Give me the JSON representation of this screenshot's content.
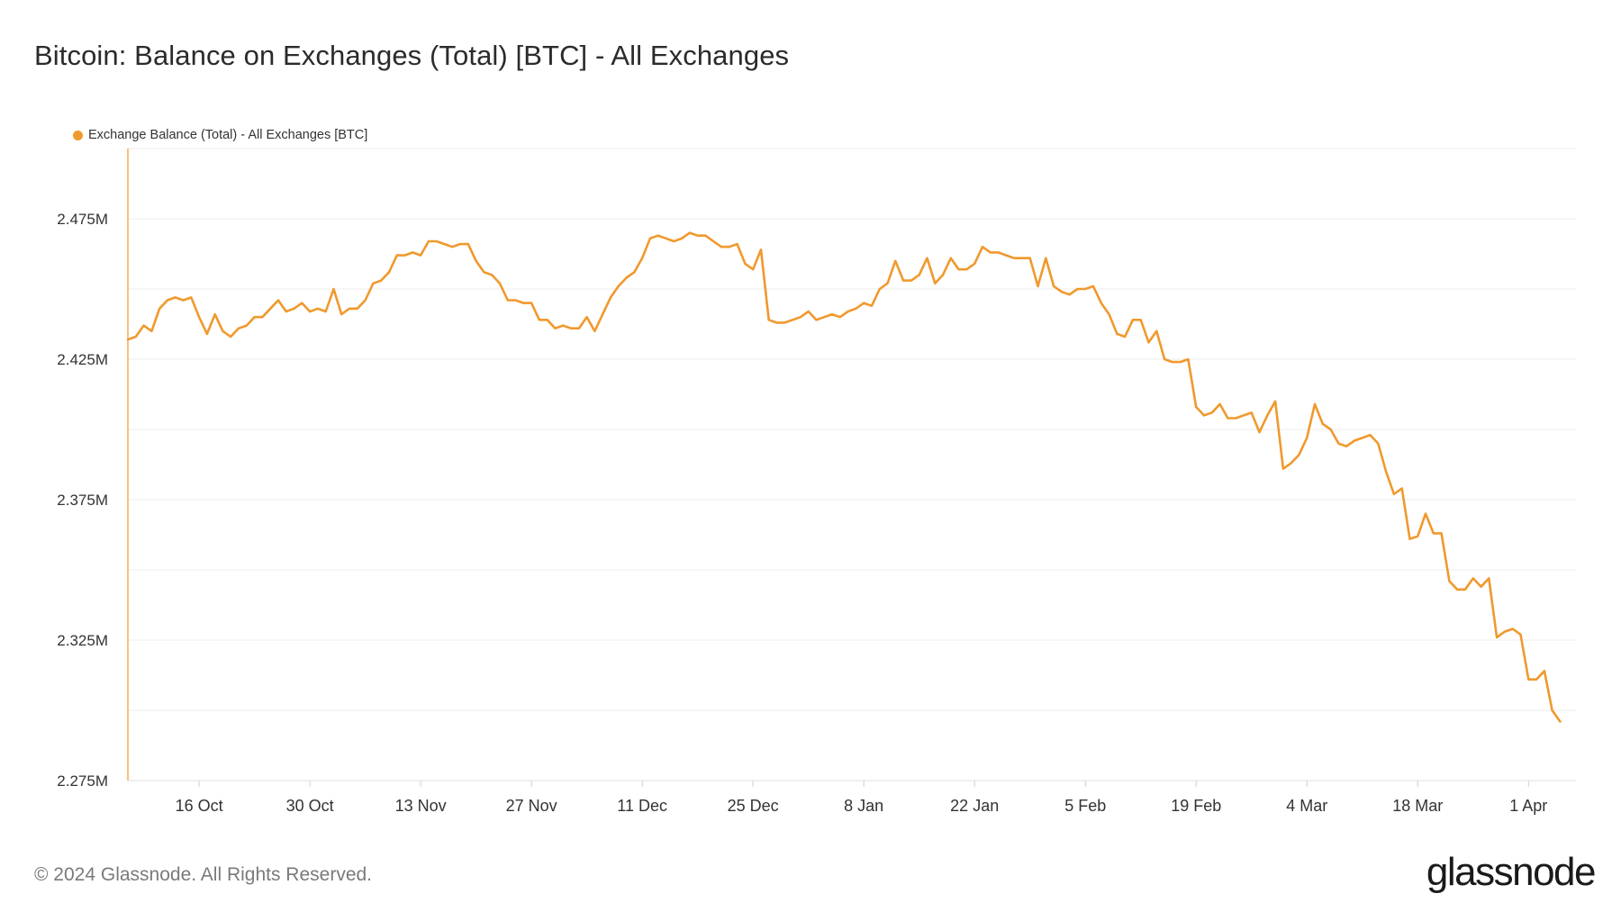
{
  "title": "Bitcoin: Balance on Exchanges (Total) [BTC] - All Exchanges",
  "footer": "© 2024 Glassnode. All Rights Reserved.",
  "brand": "glassnode",
  "colors": {
    "series": "#F0992D",
    "grid": "#ECECEC",
    "axis_text": "#333333"
  },
  "chart_data": {
    "type": "line",
    "ylim": [
      2275000,
      2500000
    ],
    "xlim": [
      "2023-10-07",
      "2024-04-07"
    ],
    "y_ticks": [
      2275000,
      2325000,
      2375000,
      2425000,
      2475000
    ],
    "y_tick_labels": [
      "2.275M",
      "2.325M",
      "2.375M",
      "2.425M",
      "2.475M"
    ],
    "x_ticks": [
      "2023-10-16",
      "2023-10-30",
      "2023-11-13",
      "2023-11-27",
      "2023-12-11",
      "2023-12-25",
      "2024-01-08",
      "2024-01-22",
      "2024-02-05",
      "2024-02-19",
      "2024-03-04",
      "2024-03-18",
      "2024-04-01"
    ],
    "x_tick_labels": [
      "16 Oct",
      "30 Oct",
      "13 Nov",
      "27 Nov",
      "11 Dec",
      "25 Dec",
      "8 Jan",
      "22 Jan",
      "5 Feb",
      "19 Feb",
      "4 Mar",
      "18 Mar",
      "1 Apr"
    ],
    "legend": "top-left",
    "grid": true,
    "series": [
      {
        "name": "Exchange Balance (Total) - All Exchanges [BTC]",
        "start": "2023-10-07",
        "step_days": 1,
        "values": [
          2432000,
          2433000,
          2437000,
          2435000,
          2443000,
          2446000,
          2447000,
          2446000,
          2447000,
          2440000,
          2434000,
          2441000,
          2435000,
          2433000,
          2436000,
          2437000,
          2440000,
          2440000,
          2443000,
          2446000,
          2442000,
          2443000,
          2445000,
          2442000,
          2443000,
          2442000,
          2450000,
          2441000,
          2443000,
          2443000,
          2446000,
          2452000,
          2453000,
          2456000,
          2462000,
          2462000,
          2463000,
          2462000,
          2467000,
          2467000,
          2466000,
          2465000,
          2466000,
          2466000,
          2460000,
          2456000,
          2455000,
          2452000,
          2446000,
          2446000,
          2445000,
          2445000,
          2439000,
          2439000,
          2436000,
          2437000,
          2436000,
          2436000,
          2440000,
          2435000,
          2441000,
          2447000,
          2451000,
          2454000,
          2456000,
          2461000,
          2468000,
          2469000,
          2468000,
          2467000,
          2468000,
          2470000,
          2469000,
          2469000,
          2467000,
          2465000,
          2465000,
          2466000,
          2459000,
          2457000,
          2464000,
          2439000,
          2438000,
          2438000,
          2439000,
          2440000,
          2442000,
          2439000,
          2440000,
          2441000,
          2440000,
          2442000,
          2443000,
          2445000,
          2444000,
          2450000,
          2452000,
          2460000,
          2453000,
          2453000,
          2455000,
          2461000,
          2452000,
          2455000,
          2461000,
          2457000,
          2457000,
          2459000,
          2465000,
          2463000,
          2463000,
          2462000,
          2461000,
          2461000,
          2461000,
          2451000,
          2461000,
          2451000,
          2449000,
          2448000,
          2450000,
          2450000,
          2451000,
          2445000,
          2441000,
          2434000,
          2433000,
          2439000,
          2439000,
          2431000,
          2435000,
          2425000,
          2424000,
          2424000,
          2425000,
          2408000,
          2405000,
          2406000,
          2409000,
          2404000,
          2404000,
          2405000,
          2406000,
          2399000,
          2405000,
          2410000,
          2386000,
          2388000,
          2391000,
          2397000,
          2409000,
          2402000,
          2400000,
          2395000,
          2394000,
          2396000,
          2397000,
          2398000,
          2395000,
          2385000,
          2377000,
          2379000,
          2361000,
          2362000,
          2370000,
          2363000,
          2363000,
          2346000,
          2343000,
          2343000,
          2347000,
          2344000,
          2347000,
          2326000,
          2328000,
          2329000,
          2327000,
          2311000,
          2311000,
          2314000,
          2300000,
          2296000
        ]
      }
    ]
  }
}
